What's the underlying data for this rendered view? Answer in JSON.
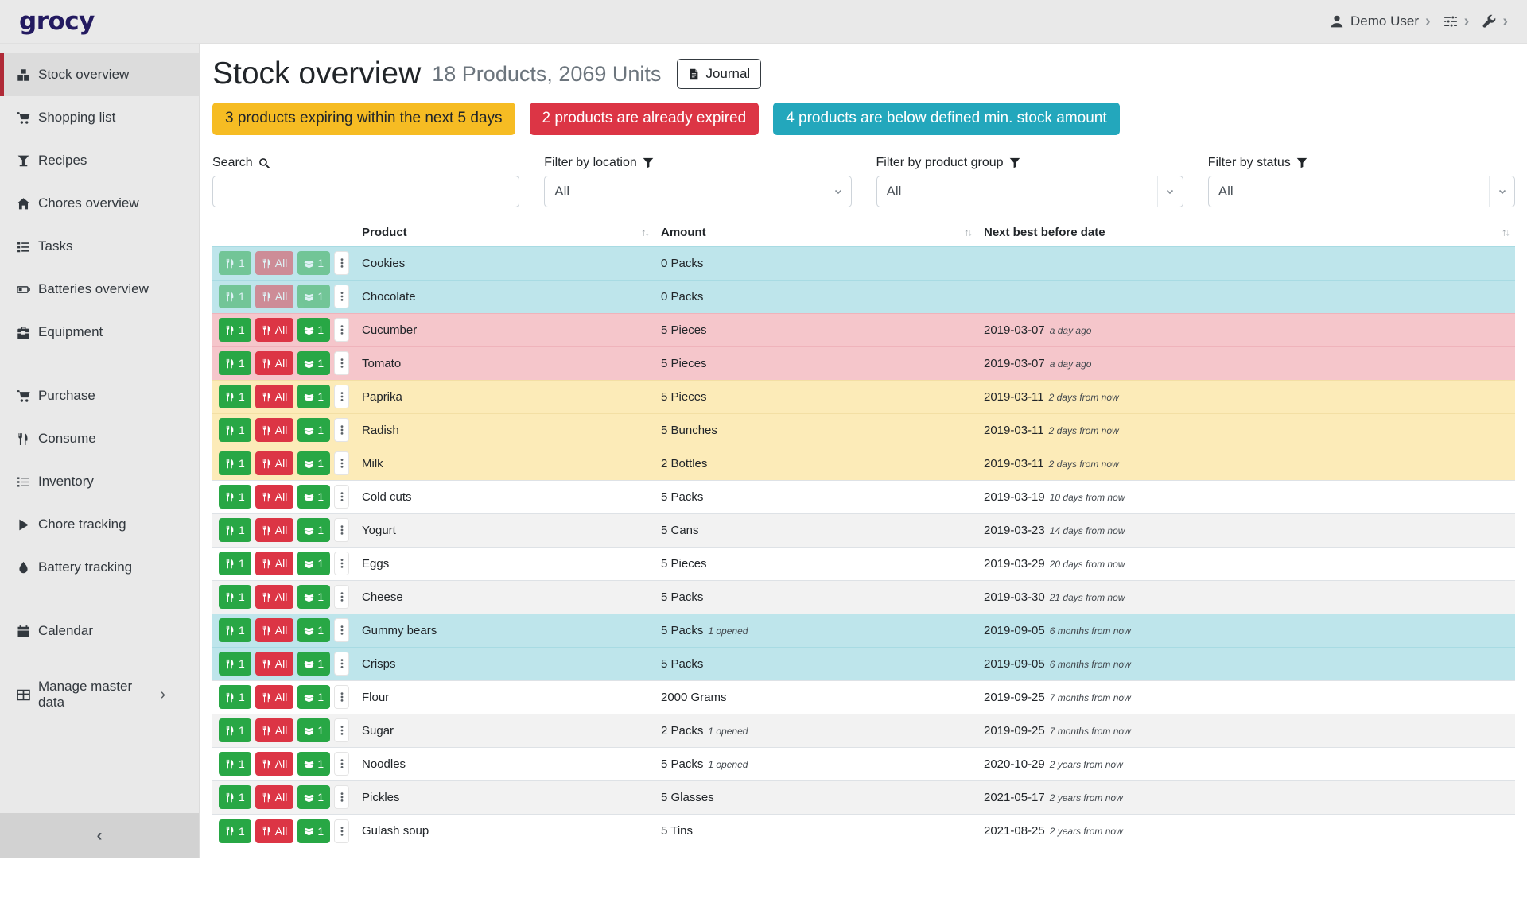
{
  "navbar": {
    "logo": "grocy",
    "menus": [
      {
        "icon": "user",
        "label": "Demo User"
      },
      {
        "icon": "sliders",
        "label": ""
      },
      {
        "icon": "wrench",
        "label": ""
      }
    ]
  },
  "sidebar": {
    "groups": [
      {
        "items": [
          {
            "icon": "boxes",
            "label": "Stock overview",
            "active": true
          },
          {
            "icon": "cart",
            "label": "Shopping list"
          },
          {
            "icon": "cocktail",
            "label": "Recipes"
          },
          {
            "icon": "home",
            "label": "Chores overview"
          },
          {
            "icon": "tasks",
            "label": "Tasks"
          },
          {
            "icon": "battery",
            "label": "Batteries overview"
          },
          {
            "icon": "toolbox",
            "label": "Equipment"
          }
        ]
      },
      {
        "items": [
          {
            "icon": "cart",
            "label": "Purchase"
          },
          {
            "icon": "utensils",
            "label": "Consume"
          },
          {
            "icon": "list",
            "label": "Inventory"
          },
          {
            "icon": "play",
            "label": "Chore tracking"
          },
          {
            "icon": "drop",
            "label": "Battery tracking"
          }
        ]
      },
      {
        "items": [
          {
            "icon": "calendar",
            "label": "Calendar"
          }
        ]
      },
      {
        "items": [
          {
            "icon": "table",
            "label": "Manage master data",
            "chevron": true
          }
        ]
      }
    ],
    "collapse_glyph": "‹"
  },
  "header": {
    "title": "Stock overview",
    "subtitle": "18 Products, 2069 Units",
    "journal_label": "Journal"
  },
  "badges": [
    {
      "type": "warning",
      "text": "3 products expiring within the next 5 days"
    },
    {
      "type": "danger",
      "text": "2 products are already expired"
    },
    {
      "type": "info",
      "text": "4 products are below defined min. stock amount"
    }
  ],
  "filters": [
    {
      "label": "Search",
      "icon": "search",
      "type": "input",
      "value": ""
    },
    {
      "label": "Filter by location",
      "icon": "filter",
      "type": "select",
      "value": "All"
    },
    {
      "label": "Filter by product group",
      "icon": "filter",
      "type": "select",
      "value": "All"
    },
    {
      "label": "Filter by status",
      "icon": "filter",
      "type": "select",
      "value": "All"
    }
  ],
  "table": {
    "columns": [
      {
        "label": "",
        "sortable": false
      },
      {
        "label": "Product",
        "sortable": true
      },
      {
        "label": "Amount",
        "sortable": true
      },
      {
        "label": "Next best before date",
        "sortable": true
      }
    ],
    "buttons": {
      "consume_one": "1",
      "consume_all": "All",
      "open_one": "1"
    },
    "rows": [
      {
        "product": "Cookies",
        "amount": "0 Packs",
        "amount_note": "",
        "date": "",
        "date_note": "",
        "status": "below_min_stock",
        "buttons_disabled": true
      },
      {
        "product": "Chocolate",
        "amount": "0 Packs",
        "amount_note": "",
        "date": "",
        "date_note": "",
        "status": "below_min_stock",
        "buttons_disabled": true
      },
      {
        "product": "Cucumber",
        "amount": "5 Pieces",
        "amount_note": "",
        "date": "2019-03-07",
        "date_note": "a day ago",
        "status": "expired",
        "buttons_disabled": false
      },
      {
        "product": "Tomato",
        "amount": "5 Pieces",
        "amount_note": "",
        "date": "2019-03-07",
        "date_note": "a day ago",
        "status": "expired",
        "buttons_disabled": false
      },
      {
        "product": "Paprika",
        "amount": "5 Pieces",
        "amount_note": "",
        "date": "2019-03-11",
        "date_note": "2 days from now",
        "status": "expiring",
        "buttons_disabled": false
      },
      {
        "product": "Radish",
        "amount": "5 Bunches",
        "amount_note": "",
        "date": "2019-03-11",
        "date_note": "2 days from now",
        "status": "expiring",
        "buttons_disabled": false
      },
      {
        "product": "Milk",
        "amount": "2 Bottles",
        "amount_note": "",
        "date": "2019-03-11",
        "date_note": "2 days from now",
        "status": "expiring",
        "buttons_disabled": false
      },
      {
        "product": "Cold cuts",
        "amount": "5 Packs",
        "amount_note": "",
        "date": "2019-03-19",
        "date_note": "10 days from now",
        "status": "ok",
        "buttons_disabled": false
      },
      {
        "product": "Yogurt",
        "amount": "5 Cans",
        "amount_note": "",
        "date": "2019-03-23",
        "date_note": "14 days from now",
        "status": "ok",
        "buttons_disabled": false
      },
      {
        "product": "Eggs",
        "amount": "5 Pieces",
        "amount_note": "",
        "date": "2019-03-29",
        "date_note": "20 days from now",
        "status": "ok",
        "buttons_disabled": false
      },
      {
        "product": "Cheese",
        "amount": "5 Packs",
        "amount_note": "",
        "date": "2019-03-30",
        "date_note": "21 days from now",
        "status": "ok",
        "buttons_disabled": false
      },
      {
        "product": "Gummy bears",
        "amount": "5 Packs",
        "amount_note": "1 opened",
        "date": "2019-09-05",
        "date_note": "6 months from now",
        "status": "below_min_stock",
        "buttons_disabled": false
      },
      {
        "product": "Crisps",
        "amount": "5 Packs",
        "amount_note": "",
        "date": "2019-09-05",
        "date_note": "6 months from now",
        "status": "below_min_stock",
        "buttons_disabled": false
      },
      {
        "product": "Flour",
        "amount": "2000 Grams",
        "amount_note": "",
        "date": "2019-09-25",
        "date_note": "7 months from now",
        "status": "ok",
        "buttons_disabled": false
      },
      {
        "product": "Sugar",
        "amount": "2 Packs",
        "amount_note": "1 opened",
        "date": "2019-09-25",
        "date_note": "7 months from now",
        "status": "ok",
        "buttons_disabled": false
      },
      {
        "product": "Noodles",
        "amount": "5 Packs",
        "amount_note": "1 opened",
        "date": "2020-10-29",
        "date_note": "2 years from now",
        "status": "ok",
        "buttons_disabled": false
      },
      {
        "product": "Pickles",
        "amount": "5 Glasses",
        "amount_note": "",
        "date": "2021-05-17",
        "date_note": "2 years from now",
        "status": "ok",
        "buttons_disabled": false
      },
      {
        "product": "Gulash soup",
        "amount": "5 Tins",
        "amount_note": "",
        "date": "2021-08-25",
        "date_note": "2 years from now",
        "status": "ok",
        "buttons_disabled": false
      }
    ]
  },
  "colors": {
    "sidebar_accent": "#b02a37",
    "button_green": "#28a745",
    "button_red": "#dc3545",
    "row_expired": "#f5c6cb",
    "row_expiring": "#fcebb8",
    "row_below_min": "#bee5eb",
    "row_stripe": "#f2f2f2",
    "badge_warning": "#f6bc23",
    "badge_danger": "#dc3545",
    "badge_info": "#23a7bc",
    "logo_color": "#231a60"
  }
}
